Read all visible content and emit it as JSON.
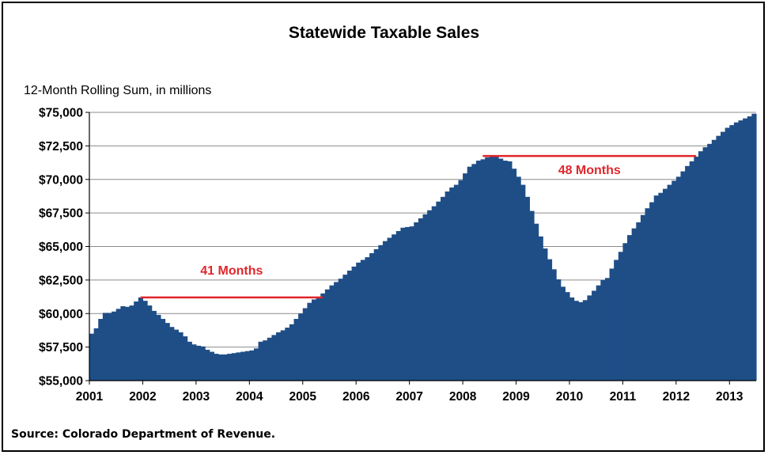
{
  "chart_data": {
    "type": "bar",
    "title": "Statewide Taxable Sales",
    "ylabel": "12-Month Rolling Sum, in millions",
    "source": "Source: Colorado Department of Revenue.",
    "ylim": [
      55000,
      75000
    ],
    "yticks": [
      55000,
      57500,
      60000,
      62500,
      65000,
      67500,
      70000,
      72500,
      75000
    ],
    "ytick_labels": [
      "$55,000",
      "$57,500",
      "$60,000",
      "$62,500",
      "$65,000",
      "$67,500",
      "$70,000",
      "$72,500",
      "$75,000"
    ],
    "xticks": [
      "2001",
      "2002",
      "2003",
      "2004",
      "2005",
      "2006",
      "2007",
      "2008",
      "2009",
      "2010",
      "2011",
      "2012",
      "2013"
    ],
    "x_start": "2001-01",
    "grid": true,
    "bar_color": "#1f4e87",
    "annotation_color": "#e0262b",
    "values": [
      58500,
      58900,
      59600,
      60050,
      60050,
      60150,
      60350,
      60550,
      60500,
      60600,
      60900,
      61200,
      60950,
      60600,
      60200,
      59900,
      59600,
      59300,
      59000,
      58800,
      58600,
      58300,
      57900,
      57700,
      57600,
      57550,
      57300,
      57150,
      57000,
      56950,
      56950,
      57000,
      57050,
      57100,
      57150,
      57200,
      57250,
      57400,
      57900,
      58000,
      58200,
      58400,
      58600,
      58750,
      58950,
      59200,
      59600,
      60000,
      60400,
      60800,
      61050,
      61250,
      61500,
      61800,
      62100,
      62350,
      62600,
      62900,
      63200,
      63500,
      63800,
      64000,
      64200,
      64500,
      64800,
      65100,
      65400,
      65650,
      65900,
      66150,
      66400,
      66450,
      66500,
      66800,
      67100,
      67400,
      67700,
      68000,
      68350,
      68700,
      69100,
      69400,
      69600,
      69950,
      70450,
      70950,
      71150,
      71400,
      71500,
      71650,
      71750,
      71700,
      71550,
      71400,
      71350,
      70800,
      70200,
      69600,
      68700,
      67650,
      66700,
      65750,
      64850,
      64050,
      63300,
      62550,
      62000,
      61600,
      61200,
      60950,
      60850,
      61000,
      61350,
      61700,
      62100,
      62500,
      62650,
      63350,
      64000,
      64600,
      65250,
      65850,
      66350,
      66800,
      67350,
      67850,
      68300,
      68800,
      69000,
      69300,
      69600,
      69900,
      70200,
      70600,
      71000,
      71350,
      71700,
      72100,
      72400,
      72650,
      72950,
      73250,
      73550,
      73850,
      74050,
      74250,
      74400,
      74550,
      74700,
      74900
    ],
    "annotations": [
      {
        "label": "41 Months",
        "from_index": 11,
        "to_index": 52,
        "value": 61200
      },
      {
        "label": "48 Months",
        "from_index": 88,
        "to_index": 136,
        "value": 71750
      }
    ]
  }
}
